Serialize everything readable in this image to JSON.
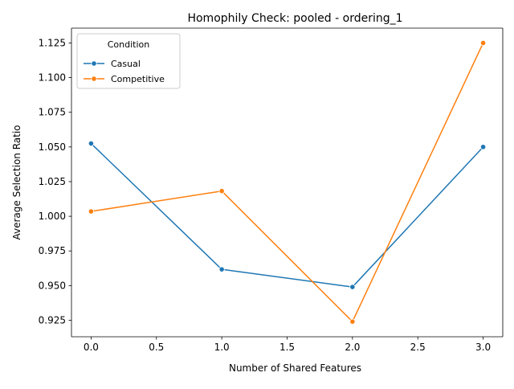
{
  "chart_data": {
    "type": "line",
    "title": "Homophily Check: pooled - ordering_1",
    "xlabel": "Number of Shared Features",
    "ylabel": "Average Selection Ratio",
    "x": [
      0,
      1,
      2,
      3
    ],
    "xlim": [
      -0.15,
      3.15
    ],
    "ylim": [
      0.9131,
      1.1357
    ],
    "xticks": [
      "0.0",
      "0.5",
      "1.0",
      "1.5",
      "2.0",
      "2.5",
      "3.0"
    ],
    "yticks": [
      "0.925",
      "0.950",
      "0.975",
      "1.000",
      "1.025",
      "1.050",
      "1.075",
      "1.100",
      "1.125"
    ],
    "grid": false,
    "legend": {
      "title": "Condition",
      "placement": "top-left"
    },
    "series": [
      {
        "name": "Casual",
        "color": "#1f77b4",
        "marker": "circle",
        "values": [
          1.0525,
          0.9617,
          0.949,
          1.05
        ]
      },
      {
        "name": "Competitive",
        "color": "#ff7f0e",
        "marker": "circle",
        "values": [
          1.0035,
          1.0182,
          0.924,
          1.125
        ]
      }
    ]
  }
}
